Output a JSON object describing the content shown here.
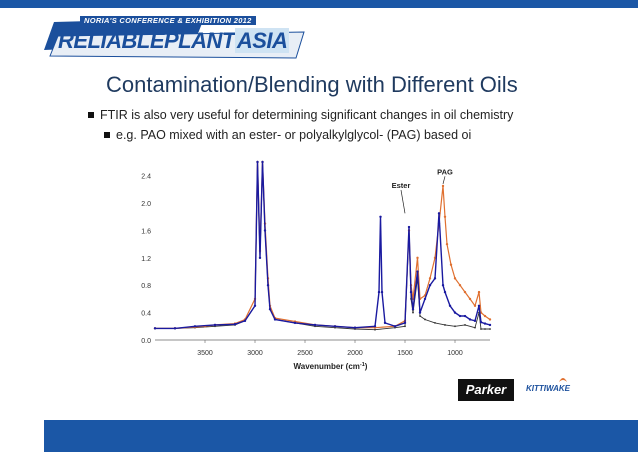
{
  "logo": {
    "subtitle": "NORIA'S CONFERENCE & EXHIBITION 2012",
    "name_part1": "RELIABLE",
    "name_part2": "PLANT",
    "name_part3": "ASIA"
  },
  "slide": {
    "title": "Contamination/Blending with Different Oils",
    "bullet1": "FTIR is also very useful for determining significant changes in oil chemistry",
    "bullet2": "e.g. PAO mixed with an ester- or polyalkylglycol- (PAG) based oi"
  },
  "brands": {
    "parker": "Parker",
    "kittiwake": "KITTIWAKE"
  },
  "colors": {
    "accent": "#1b57a6",
    "ester": "#1a1aa0",
    "pag": "#e07030",
    "pao": "#333333"
  },
  "chart_data": {
    "type": "line",
    "xlabel": "Wavenumber (cm",
    "xlabel_sup": "-1",
    "xlabel_end": ")",
    "xlim": [
      4000,
      650
    ],
    "ylim": [
      0,
      2.6
    ],
    "x_ticks": [
      "3500",
      "3000",
      "2500",
      "2000",
      "1500",
      "1000"
    ],
    "y_ticks": [
      "0.0",
      "0.4",
      "0.8",
      "1.2",
      "1.6",
      "2.0",
      "2.4"
    ],
    "annotations": [
      {
        "text": "Ester",
        "x": 1540,
        "y": 2.22,
        "arrow_to": [
          1500,
          1.85
        ]
      },
      {
        "text": "PAG",
        "x": 1100,
        "y": 2.42,
        "arrow_to": [
          1120,
          2.28
        ]
      }
    ],
    "series": [
      {
        "key": "pao",
        "points": [
          [
            4000,
            0.17
          ],
          [
            3800,
            0.17
          ],
          [
            3600,
            0.18
          ],
          [
            3400,
            0.2
          ],
          [
            3200,
            0.22
          ],
          [
            3100,
            0.28
          ],
          [
            3000,
            0.5
          ],
          [
            2975,
            2.6
          ],
          [
            2950,
            1.2
          ],
          [
            2925,
            2.6
          ],
          [
            2900,
            1.6
          ],
          [
            2870,
            0.8
          ],
          [
            2850,
            0.45
          ],
          [
            2800,
            0.3
          ],
          [
            2600,
            0.25
          ],
          [
            2400,
            0.2
          ],
          [
            2200,
            0.18
          ],
          [
            2000,
            0.16
          ],
          [
            1800,
            0.15
          ],
          [
            1600,
            0.18
          ],
          [
            1500,
            0.2
          ],
          [
            1460,
            1.6
          ],
          [
            1440,
            0.6
          ],
          [
            1420,
            0.4
          ],
          [
            1375,
            0.9
          ],
          [
            1350,
            0.35
          ],
          [
            1300,
            0.3
          ],
          [
            1200,
            0.25
          ],
          [
            1100,
            0.22
          ],
          [
            1000,
            0.2
          ],
          [
            900,
            0.22
          ],
          [
            800,
            0.18
          ],
          [
            760,
            0.4
          ],
          [
            740,
            0.16
          ],
          [
            700,
            0.16
          ],
          [
            650,
            0.16
          ]
        ]
      },
      {
        "key": "ester",
        "points": [
          [
            4000,
            0.17
          ],
          [
            3800,
            0.17
          ],
          [
            3600,
            0.2
          ],
          [
            3400,
            0.22
          ],
          [
            3200,
            0.23
          ],
          [
            3100,
            0.28
          ],
          [
            3000,
            0.5
          ],
          [
            2975,
            2.6
          ],
          [
            2950,
            1.2
          ],
          [
            2925,
            2.6
          ],
          [
            2900,
            1.6
          ],
          [
            2870,
            0.8
          ],
          [
            2850,
            0.45
          ],
          [
            2800,
            0.3
          ],
          [
            2600,
            0.25
          ],
          [
            2400,
            0.22
          ],
          [
            2200,
            0.2
          ],
          [
            2000,
            0.18
          ],
          [
            1800,
            0.2
          ],
          [
            1760,
            0.7
          ],
          [
            1745,
            1.8
          ],
          [
            1730,
            0.7
          ],
          [
            1700,
            0.25
          ],
          [
            1600,
            0.2
          ],
          [
            1500,
            0.25
          ],
          [
            1460,
            1.65
          ],
          [
            1440,
            0.7
          ],
          [
            1420,
            0.45
          ],
          [
            1375,
            1.0
          ],
          [
            1350,
            0.4
          ],
          [
            1300,
            0.6
          ],
          [
            1250,
            0.8
          ],
          [
            1200,
            0.9
          ],
          [
            1160,
            1.85
          ],
          [
            1120,
            0.8
          ],
          [
            1100,
            0.7
          ],
          [
            1050,
            0.5
          ],
          [
            1000,
            0.4
          ],
          [
            950,
            0.35
          ],
          [
            900,
            0.35
          ],
          [
            850,
            0.3
          ],
          [
            800,
            0.28
          ],
          [
            760,
            0.5
          ],
          [
            740,
            0.26
          ],
          [
            700,
            0.24
          ],
          [
            650,
            0.22
          ]
        ]
      },
      {
        "key": "pag",
        "points": [
          [
            4000,
            0.17
          ],
          [
            3800,
            0.17
          ],
          [
            3600,
            0.19
          ],
          [
            3500,
            0.2
          ],
          [
            3400,
            0.22
          ],
          [
            3200,
            0.24
          ],
          [
            3100,
            0.3
          ],
          [
            3000,
            0.6
          ],
          [
            2975,
            2.6
          ],
          [
            2950,
            1.3
          ],
          [
            2925,
            2.6
          ],
          [
            2900,
            1.7
          ],
          [
            2870,
            0.9
          ],
          [
            2850,
            0.5
          ],
          [
            2800,
            0.32
          ],
          [
            2600,
            0.27
          ],
          [
            2400,
            0.22
          ],
          [
            2200,
            0.2
          ],
          [
            2000,
            0.18
          ],
          [
            1800,
            0.18
          ],
          [
            1600,
            0.2
          ],
          [
            1500,
            0.28
          ],
          [
            1460,
            1.6
          ],
          [
            1440,
            0.8
          ],
          [
            1420,
            0.6
          ],
          [
            1375,
            1.2
          ],
          [
            1350,
            0.6
          ],
          [
            1300,
            0.65
          ],
          [
            1250,
            0.9
          ],
          [
            1200,
            1.2
          ],
          [
            1160,
            1.7
          ],
          [
            1120,
            2.25
          ],
          [
            1100,
            1.8
          ],
          [
            1080,
            1.4
          ],
          [
            1040,
            1.1
          ],
          [
            1000,
            0.9
          ],
          [
            950,
            0.8
          ],
          [
            900,
            0.7
          ],
          [
            850,
            0.6
          ],
          [
            800,
            0.5
          ],
          [
            760,
            0.7
          ],
          [
            740,
            0.4
          ],
          [
            700,
            0.35
          ],
          [
            650,
            0.3
          ]
        ]
      }
    ]
  }
}
